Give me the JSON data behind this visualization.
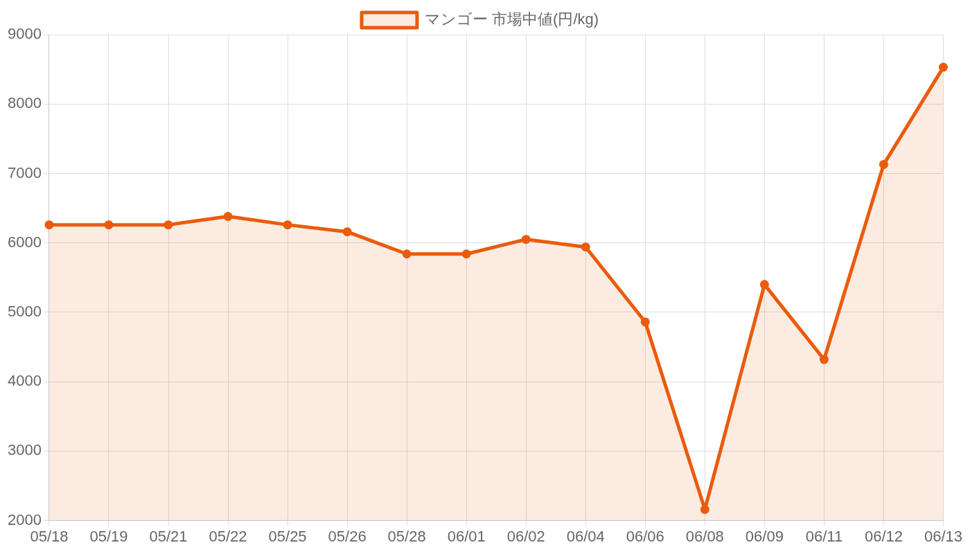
{
  "chart_data": {
    "type": "area",
    "categories": [
      "05/18",
      "05/19",
      "05/21",
      "05/22",
      "05/25",
      "05/26",
      "05/28",
      "06/01",
      "06/02",
      "06/04",
      "06/06",
      "06/08",
      "06/09",
      "06/11",
      "06/12",
      "06/13"
    ],
    "series": [
      {
        "name": "マンゴー 市場中値(円/kg)",
        "color": "#ea5b0c",
        "values": [
          6260,
          6260,
          6260,
          6380,
          6260,
          6160,
          5840,
          5840,
          6050,
          5940,
          4860,
          2160,
          5400,
          4320,
          7130,
          8530
        ]
      }
    ],
    "ylim": [
      2000,
      9000
    ],
    "yticks": [
      2000,
      3000,
      4000,
      5000,
      6000,
      7000,
      8000,
      9000
    ],
    "grid": true,
    "legend": "top",
    "marker": "circle",
    "line_style": "solid"
  }
}
